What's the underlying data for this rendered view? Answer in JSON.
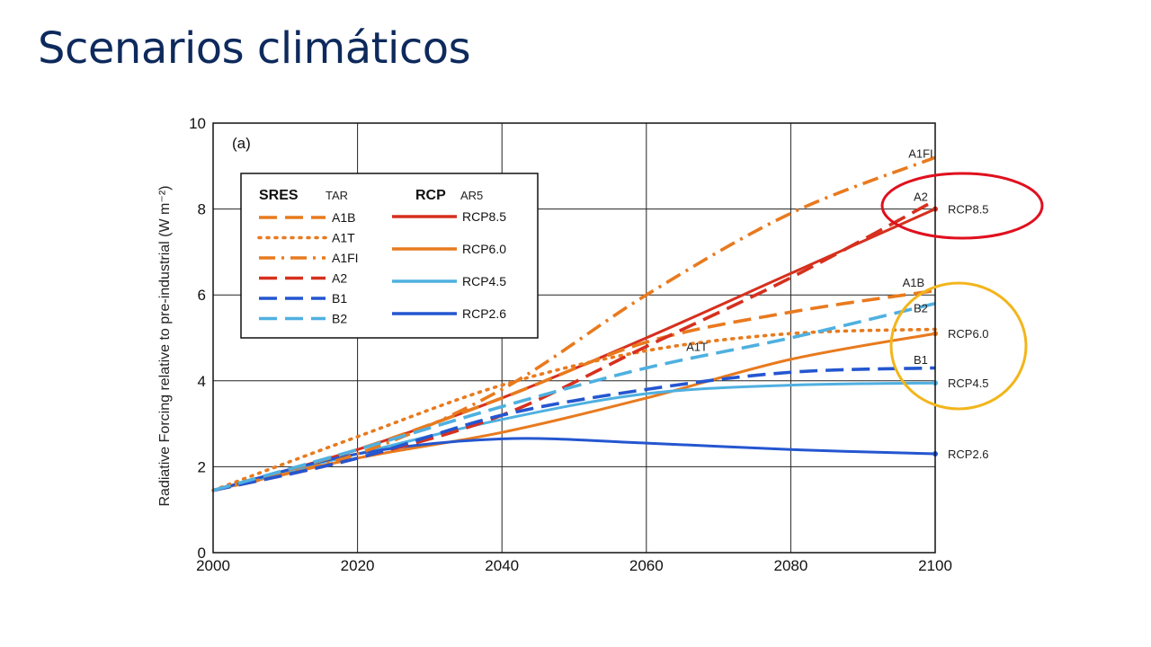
{
  "slide": {
    "title": "Scenarios climáticos"
  },
  "colors": {
    "A1B": "#e87a1e",
    "A1T": "#e87a1e",
    "A1FI": "#e87a1e",
    "A2": "#d6301e",
    "B1": "#2456d0",
    "B2": "#4fb0e0",
    "RCP8.5": "#d6301e",
    "RCP6.0": "#e87a1e",
    "RCP4.5": "#4fb0e0",
    "RCP2.6": "#2456d0",
    "highlight_red": "#e0101e",
    "highlight_yellow": "#f2b51c"
  },
  "chart_data": {
    "type": "line",
    "panel_label": "(a)",
    "ylabel": "Radiative Forcing relative to pre-industrial (W m⁻²)",
    "xlabel": "",
    "xlim": [
      2000,
      2100
    ],
    "ylim": [
      0,
      10
    ],
    "xticks": [
      "2000",
      "2020",
      "2040",
      "2060",
      "2080",
      "2100"
    ],
    "yticks": [
      "0",
      "2",
      "4",
      "6",
      "8",
      "10"
    ],
    "grid": true,
    "legend": {
      "placement": "top-left",
      "groups": [
        {
          "title": "SRES",
          "subtitle": "TAR",
          "items": [
            "A1B",
            "A1T",
            "A1FI",
            "A2",
            "B1",
            "B2"
          ]
        },
        {
          "title": "RCP",
          "subtitle": "AR5",
          "items": [
            "RCP8.5",
            "RCP6.0",
            "RCP4.5",
            "RCP2.6"
          ]
        }
      ]
    },
    "series": [
      {
        "name": "A1B",
        "style": "dashed",
        "x": [
          2000,
          2020,
          2040,
          2060,
          2080,
          2100
        ],
        "y": [
          1.45,
          2.4,
          3.6,
          4.9,
          5.6,
          6.1
        ]
      },
      {
        "name": "A1T",
        "style": "dotted",
        "x": [
          2000,
          2020,
          2040,
          2060,
          2080,
          2100
        ],
        "y": [
          1.45,
          2.7,
          3.9,
          4.7,
          5.1,
          5.2
        ]
      },
      {
        "name": "A1FI",
        "style": "dashdot",
        "x": [
          2000,
          2020,
          2040,
          2060,
          2080,
          2100
        ],
        "y": [
          1.45,
          2.3,
          3.8,
          6.0,
          7.9,
          9.2
        ]
      },
      {
        "name": "A2",
        "style": "dashed",
        "x": [
          2000,
          2020,
          2040,
          2060,
          2080,
          2100
        ],
        "y": [
          1.45,
          2.2,
          3.2,
          4.8,
          6.4,
          8.2
        ]
      },
      {
        "name": "B1",
        "style": "dashed",
        "x": [
          2000,
          2020,
          2040,
          2060,
          2080,
          2100
        ],
        "y": [
          1.45,
          2.2,
          3.2,
          3.8,
          4.2,
          4.3
        ]
      },
      {
        "name": "B2",
        "style": "dashed",
        "x": [
          2000,
          2020,
          2040,
          2060,
          2080,
          2100
        ],
        "y": [
          1.45,
          2.4,
          3.4,
          4.3,
          5.0,
          5.8
        ]
      },
      {
        "name": "RCP8.5",
        "style": "solid",
        "x": [
          2000,
          2020,
          2040,
          2060,
          2080,
          2100
        ],
        "y": [
          1.45,
          2.4,
          3.6,
          5.0,
          6.5,
          8.0
        ]
      },
      {
        "name": "RCP6.0",
        "style": "solid",
        "x": [
          2000,
          2020,
          2040,
          2060,
          2080,
          2100
        ],
        "y": [
          1.45,
          2.2,
          2.8,
          3.6,
          4.5,
          5.1
        ]
      },
      {
        "name": "RCP4.5",
        "style": "solid",
        "x": [
          2000,
          2020,
          2040,
          2060,
          2080,
          2100
        ],
        "y": [
          1.45,
          2.3,
          3.1,
          3.7,
          3.9,
          3.95
        ]
      },
      {
        "name": "RCP2.6",
        "style": "solid",
        "x": [
          2000,
          2020,
          2040,
          2060,
          2080,
          2100
        ],
        "y": [
          1.45,
          2.3,
          2.65,
          2.55,
          2.4,
          2.3
        ]
      }
    ],
    "annotations": [
      {
        "text": "A1FI",
        "near_series": "A1FI",
        "x": 2098,
        "y": 9.3
      },
      {
        "text": "A2",
        "near_series": "A2",
        "x": 2098,
        "y": 8.3
      },
      {
        "text": "RCP8.5",
        "near_series": "RCP8.5",
        "x": 2101,
        "y": 8.0
      },
      {
        "text": "A1B",
        "near_series": "A1B",
        "x": 2097,
        "y": 6.3
      },
      {
        "text": "B2",
        "near_series": "B2",
        "x": 2098,
        "y": 5.7
      },
      {
        "text": "RCP6.0",
        "near_series": "RCP6.0",
        "x": 2101,
        "y": 5.1
      },
      {
        "text": "A1T",
        "near_series": "A1T",
        "x": 2067,
        "y": 4.8
      },
      {
        "text": "B1",
        "near_series": "B1",
        "x": 2098,
        "y": 4.5
      },
      {
        "text": "RCP4.5",
        "near_series": "RCP4.5",
        "x": 2101,
        "y": 3.95
      },
      {
        "text": "RCP2.6",
        "near_series": "RCP2.6",
        "x": 2101,
        "y": 2.3
      }
    ],
    "highlights": [
      {
        "color": "highlight_red",
        "around": [
          "A2",
          "RCP8.5"
        ]
      },
      {
        "color": "highlight_yellow",
        "around": [
          "B2",
          "RCP6.0",
          "B1",
          "RCP4.5"
        ]
      }
    ]
  }
}
